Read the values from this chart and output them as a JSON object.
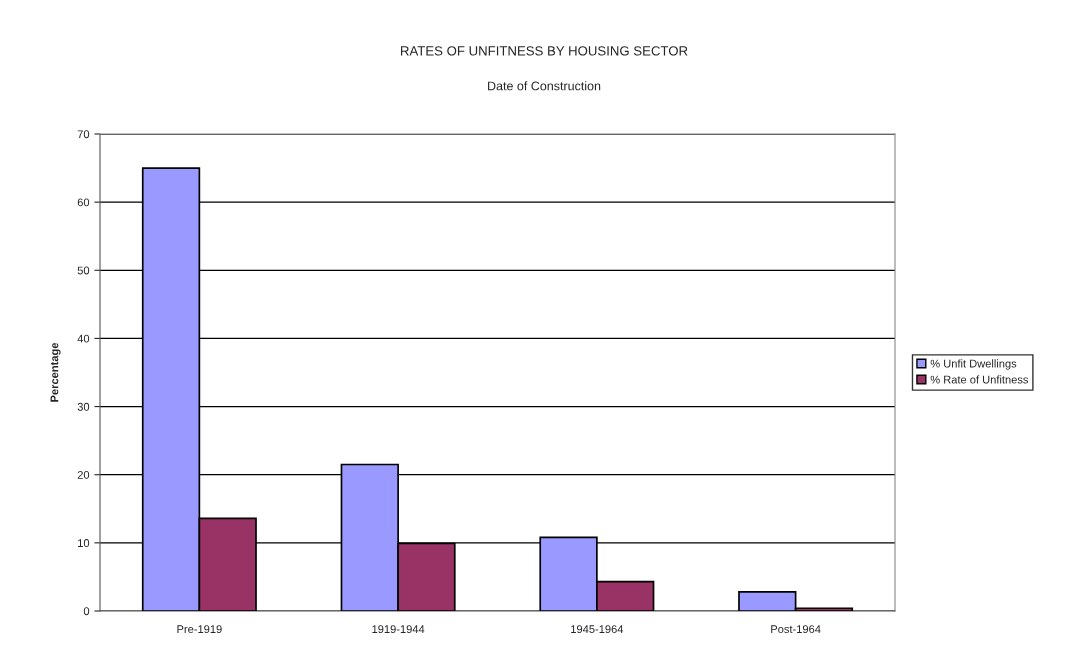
{
  "chart_data": {
    "type": "bar",
    "title": "RATES OF UNFITNESS BY HOUSING SECTOR",
    "subtitle": "Date of Construction",
    "ylabel": "Percentage",
    "categories": [
      "Pre-1919",
      "1919-1944",
      "1945-1964",
      "Post-1964"
    ],
    "series": [
      {
        "name": "% Unfit Dwellings",
        "color": "#9999ff",
        "values": [
          65,
          21.5,
          10.8,
          2.8
        ]
      },
      {
        "name": "% Rate of Unfitness",
        "color": "#993366",
        "values": [
          13.6,
          9.9,
          4.3,
          0.4
        ]
      }
    ],
    "ylim": [
      0,
      70
    ],
    "yticks": [
      0,
      10,
      20,
      30,
      40,
      50,
      60,
      70
    ],
    "grid": "y",
    "legend": "right"
  }
}
